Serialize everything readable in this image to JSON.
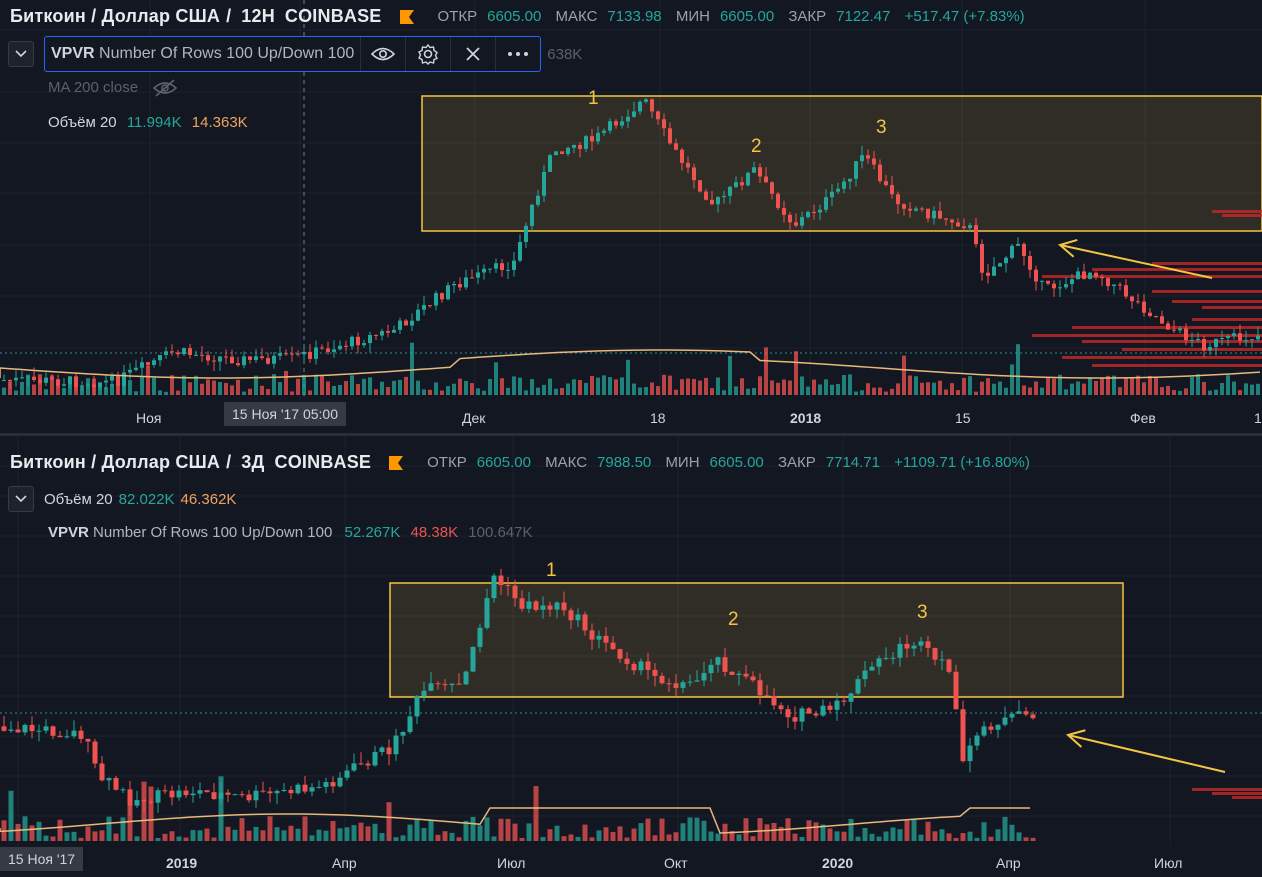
{
  "pane1": {
    "symbol": "Биткоин / Доллар США",
    "interval": "12H",
    "exchange": "COINBASE",
    "ohlc": {
      "open_label": "ОТКР",
      "open": "6605.00",
      "high_label": "МАКС",
      "high": "7133.98",
      "low_label": "МИН",
      "low": "6605.00",
      "close_label": "ЗАКР",
      "close": "7122.47",
      "change": "+517.47 (+7.83%)"
    },
    "vpvr": {
      "name": "VPVR",
      "params": "Number Of Rows 100 Up/Down 100",
      "trailing_value": "638K",
      "buttons": [
        "eye-icon",
        "gear-icon",
        "close-icon",
        "more-icon"
      ]
    },
    "ma": {
      "label": "MA 200 close"
    },
    "volume": {
      "label": "Объём 20",
      "v1": "11.994K",
      "v2": "14.363K"
    },
    "x_axis": {
      "ticks": [
        "Ноя",
        "Дек",
        "18",
        "2018",
        "15",
        "Фев",
        "1"
      ],
      "crosshair_label": "15 Ноя '17   05:00"
    },
    "annotations": [
      "1",
      "2",
      "3"
    ]
  },
  "pane2": {
    "symbol": "Биткоин / Доллар США",
    "interval": "3Д",
    "exchange": "COINBASE",
    "ohlc": {
      "open_label": "ОТКР",
      "open": "6605.00",
      "high_label": "МАКС",
      "high": "7988.50",
      "low_label": "МИН",
      "low": "6605.00",
      "close_label": "ЗАКР",
      "close": "7714.71",
      "change": "+1109.71 (+16.80%)"
    },
    "volume": {
      "label": "Объём 20",
      "v1": "82.022K",
      "v2": "46.362K"
    },
    "vpvr": {
      "name": "VPVR",
      "params": "Number Of Rows 100 Up/Down 100",
      "v_up": "52.267K",
      "v_down": "48.38K",
      "v_total": "100.647K"
    },
    "x_axis": {
      "ticks": [
        "2019",
        "Апр",
        "Июл",
        "Окт",
        "2020",
        "Апр",
        "Июл"
      ],
      "crosshair_label": "15 Ноя '17"
    },
    "annotations": [
      "1",
      "2",
      "3"
    ]
  },
  "colors": {
    "background": "#131722",
    "up": "#26a69a",
    "down": "#ef5350",
    "accent": "#2962ff",
    "highlight_box": "#f5c542",
    "ma_line": "#e8b97a"
  }
}
